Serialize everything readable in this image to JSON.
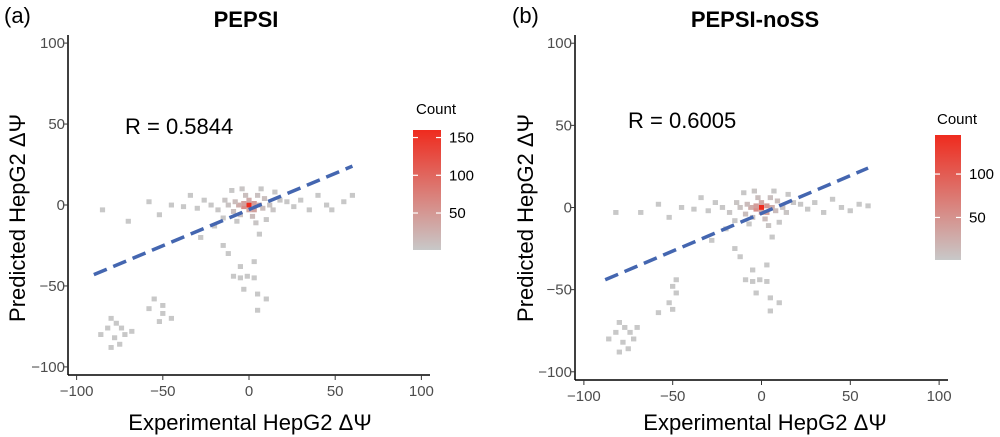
{
  "panels": [
    {
      "panel_letter": "(a)",
      "colors": {
        "low": "#c8c8c8",
        "high": "#ef2b1e",
        "fit": "#4466b0"
      },
      "chart_data": {
        "type": "heatmap",
        "title": "PEPSI",
        "xlabel": "Experimental HepG2 ΔΨ",
        "ylabel": "Predicted HepG2 ΔΨ",
        "xlim": [
          -105,
          105
        ],
        "ylim": [
          -105,
          105
        ],
        "x_ticks": [
          -100,
          -50,
          0,
          50,
          100
        ],
        "y_ticks": [
          -100,
          -50,
          0,
          50,
          100
        ],
        "x_tick_labels": [
          "−100",
          "−50",
          "0",
          "50",
          "100"
        ],
        "y_tick_labels": [
          "−100",
          "−50",
          "0",
          "50",
          "100"
        ],
        "grid": false,
        "annotation": "R = 0.5844",
        "fit_line": {
          "x": [
            -90,
            60
          ],
          "y": [
            -43,
            24
          ]
        },
        "legend": {
          "title": "Count",
          "min": 1,
          "max": 160,
          "ticks": [
            150,
            100,
            50
          ],
          "tick_labels": [
            "150",
            "100",
            "50"
          ],
          "placement": "right"
        },
        "bins": [
          [
            0,
            0,
            160
          ],
          [
            -3,
            -1,
            60
          ],
          [
            3,
            1,
            45
          ],
          [
            -3,
            1,
            40
          ],
          [
            3,
            -3,
            40
          ],
          [
            -6,
            0,
            28
          ],
          [
            6,
            0,
            25
          ],
          [
            0,
            3,
            30
          ],
          [
            0,
            -3,
            35
          ],
          [
            -8,
            2,
            12
          ],
          [
            8,
            -2,
            12
          ],
          [
            -9,
            -4,
            10
          ],
          [
            9,
            4,
            10
          ],
          [
            -2,
            6,
            10
          ],
          [
            2,
            -7,
            12
          ],
          [
            -5,
            -6,
            8
          ],
          [
            5,
            6,
            8
          ],
          [
            -12,
            0,
            6
          ],
          [
            12,
            0,
            6
          ],
          [
            -14,
            3,
            4
          ],
          [
            14,
            -3,
            4
          ],
          [
            -18,
            -3,
            3
          ],
          [
            18,
            3,
            3
          ],
          [
            -4,
            10,
            4
          ],
          [
            4,
            -11,
            4
          ],
          [
            -22,
            0,
            2
          ],
          [
            22,
            2,
            2
          ],
          [
            -26,
            3,
            1
          ],
          [
            26,
            -1,
            1
          ],
          [
            -30,
            -2,
            1
          ],
          [
            30,
            3,
            1
          ],
          [
            -34,
            6,
            1
          ],
          [
            35,
            -3,
            1
          ],
          [
            -10,
            9,
            2
          ],
          [
            10,
            -9,
            2
          ],
          [
            -7,
            -10,
            2
          ],
          [
            7,
            10,
            2
          ],
          [
            -15,
            -8,
            2
          ],
          [
            15,
            8,
            2
          ],
          [
            40,
            6,
            1
          ],
          [
            45,
            0,
            1
          ],
          [
            48,
            -3,
            1
          ],
          [
            55,
            2,
            1
          ],
          [
            60,
            6,
            1
          ],
          [
            -38,
            -1,
            1
          ],
          [
            -45,
            0,
            1
          ],
          [
            -52,
            -6,
            1
          ],
          [
            -58,
            2,
            1
          ],
          [
            -70,
            -10,
            1
          ],
          [
            -85,
            -3,
            1
          ],
          [
            -15,
            -25,
            1
          ],
          [
            -28,
            -20,
            1
          ],
          [
            -20,
            -13,
            1
          ],
          [
            -9,
            -44,
            1
          ],
          [
            -5,
            -45,
            1
          ],
          [
            -1,
            -44,
            1
          ],
          [
            3,
            -45,
            1
          ],
          [
            -5,
            -38,
            1
          ],
          [
            3,
            -35,
            1
          ],
          [
            -12,
            -30,
            1
          ],
          [
            6,
            -18,
            1
          ],
          [
            -3,
            -52,
            1
          ],
          [
            5,
            -55,
            1
          ],
          [
            10,
            -58,
            1
          ],
          [
            5,
            -65,
            1
          ],
          [
            -50,
            -62,
            1
          ],
          [
            -50,
            -67,
            1
          ],
          [
            -52,
            -72,
            1
          ],
          [
            -55,
            -58,
            1
          ],
          [
            -80,
            -70,
            1
          ],
          [
            -77,
            -73,
            1
          ],
          [
            -74,
            -76,
            1
          ],
          [
            -82,
            -76,
            1
          ],
          [
            -86,
            -80,
            1
          ],
          [
            -78,
            -82,
            1
          ],
          [
            -72,
            -80,
            1
          ],
          [
            -75,
            -86,
            1
          ],
          [
            -80,
            -88,
            1
          ],
          [
            -45,
            -70,
            1
          ],
          [
            -58,
            -64,
            1
          ],
          [
            -68,
            -78,
            1
          ]
        ]
      }
    },
    {
      "panel_letter": "(b)",
      "colors": {
        "low": "#c8c8c8",
        "high": "#ef2b1e",
        "fit": "#4466b0"
      },
      "chart_data": {
        "type": "heatmap",
        "title": "PEPSI-noSS",
        "xlabel": "Experimental HepG2 ΔΨ",
        "ylabel": "Predicted HepG2 ΔΨ",
        "xlim": [
          -105,
          105
        ],
        "ylim": [
          -105,
          105
        ],
        "x_ticks": [
          -100,
          -50,
          0,
          50,
          100
        ],
        "y_ticks": [
          -100,
          -50,
          0,
          50,
          100
        ],
        "x_tick_labels": [
          "−100",
          "−50",
          "0",
          "50",
          "100"
        ],
        "y_tick_labels": [
          "−100",
          "−50",
          "0",
          "50",
          "100"
        ],
        "grid": false,
        "annotation": "R = 0.6005",
        "fit_line": {
          "x": [
            -88,
            60
          ],
          "y": [
            -44,
            24
          ]
        },
        "legend": {
          "title": "Count",
          "min": 1,
          "max": 145,
          "ticks": [
            100,
            50
          ],
          "tick_labels": [
            "100",
            "50"
          ],
          "placement": "right"
        },
        "bins": [
          [
            0,
            0,
            145
          ],
          [
            -3,
            -1,
            55
          ],
          [
            3,
            1,
            45
          ],
          [
            -3,
            1,
            40
          ],
          [
            3,
            -3,
            38
          ],
          [
            -6,
            0,
            26
          ],
          [
            6,
            0,
            25
          ],
          [
            0,
            3,
            30
          ],
          [
            0,
            -3,
            32
          ],
          [
            -8,
            2,
            12
          ],
          [
            8,
            -2,
            12
          ],
          [
            -9,
            -4,
            10
          ],
          [
            9,
            4,
            10
          ],
          [
            -2,
            6,
            10
          ],
          [
            2,
            -7,
            12
          ],
          [
            -5,
            -6,
            8
          ],
          [
            5,
            6,
            8
          ],
          [
            -12,
            0,
            6
          ],
          [
            12,
            0,
            6
          ],
          [
            -14,
            3,
            4
          ],
          [
            14,
            -3,
            4
          ],
          [
            -18,
            -3,
            3
          ],
          [
            18,
            3,
            3
          ],
          [
            -4,
            10,
            4
          ],
          [
            4,
            -11,
            4
          ],
          [
            -22,
            0,
            2
          ],
          [
            22,
            2,
            2
          ],
          [
            -26,
            3,
            1
          ],
          [
            26,
            -1,
            1
          ],
          [
            -30,
            -2,
            1
          ],
          [
            30,
            3,
            1
          ],
          [
            -34,
            6,
            1
          ],
          [
            35,
            -3,
            1
          ],
          [
            -10,
            9,
            2
          ],
          [
            10,
            -9,
            2
          ],
          [
            -7,
            -10,
            2
          ],
          [
            7,
            10,
            2
          ],
          [
            -15,
            -8,
            2
          ],
          [
            15,
            8,
            2
          ],
          [
            40,
            5,
            1
          ],
          [
            45,
            0,
            1
          ],
          [
            50,
            -2,
            1
          ],
          [
            55,
            2,
            1
          ],
          [
            60,
            1,
            1
          ],
          [
            -38,
            -1,
            1
          ],
          [
            -45,
            0,
            1
          ],
          [
            -52,
            -6,
            1
          ],
          [
            -58,
            2,
            1
          ],
          [
            -68,
            -3,
            1
          ],
          [
            -82,
            -3,
            1
          ],
          [
            -15,
            -25,
            1
          ],
          [
            -28,
            -20,
            1
          ],
          [
            -20,
            -13,
            1
          ],
          [
            -9,
            -44,
            1
          ],
          [
            -5,
            -45,
            1
          ],
          [
            -1,
            -44,
            1
          ],
          [
            3,
            -45,
            1
          ],
          [
            -5,
            -38,
            1
          ],
          [
            3,
            -35,
            1
          ],
          [
            -12,
            -30,
            1
          ],
          [
            6,
            -18,
            1
          ],
          [
            -3,
            -52,
            1
          ],
          [
            5,
            -55,
            1
          ],
          [
            10,
            -58,
            1
          ],
          [
            5,
            -63,
            1
          ],
          [
            -48,
            -44,
            1
          ],
          [
            -50,
            -48,
            1
          ],
          [
            -48,
            -52,
            1
          ],
          [
            -52,
            -58,
            1
          ],
          [
            -50,
            -62,
            1
          ],
          [
            -58,
            -64,
            1
          ],
          [
            -80,
            -70,
            1
          ],
          [
            -77,
            -73,
            1
          ],
          [
            -74,
            -76,
            1
          ],
          [
            -82,
            -76,
            1
          ],
          [
            -86,
            -80,
            1
          ],
          [
            -78,
            -82,
            1
          ],
          [
            -72,
            -80,
            1
          ],
          [
            -75,
            -86,
            1
          ],
          [
            -80,
            -88,
            1
          ],
          [
            -70,
            -73,
            1
          ]
        ]
      }
    }
  ]
}
